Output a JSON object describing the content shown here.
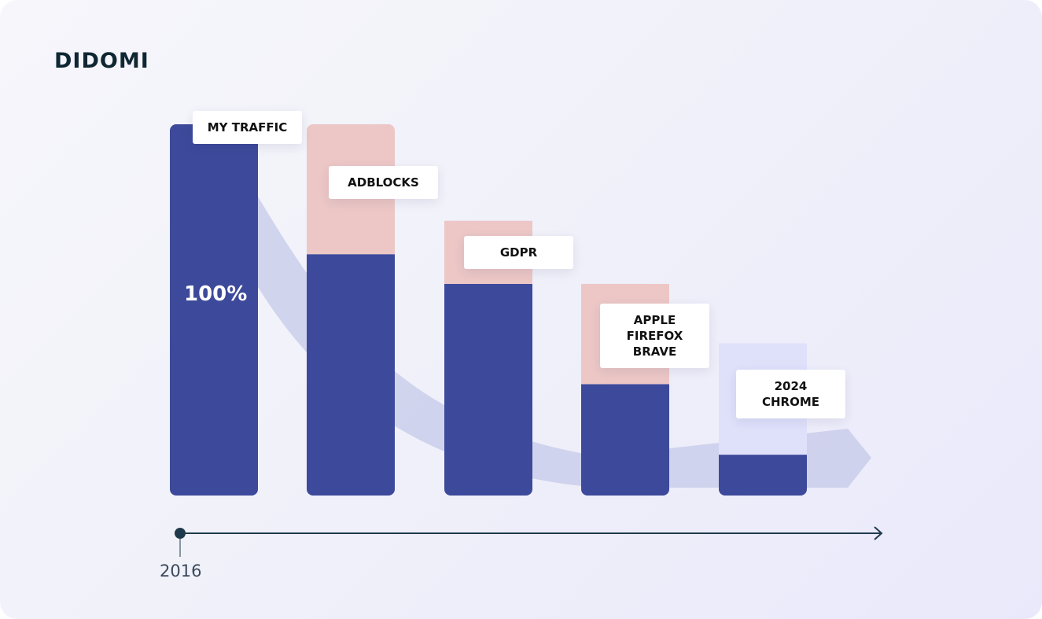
{
  "brand": {
    "logo_text": "DIDOMI"
  },
  "colors": {
    "retained": "#3d4a9b",
    "lost": "#ecc7c6",
    "lost_future": "#dfe1fb",
    "trend_arrow": "#c5c9e8",
    "axis": "#1e3a4a"
  },
  "chart_data": {
    "type": "bar",
    "stacked": true,
    "categories": [
      "MY TRAFFIC",
      "ADBLOCKS",
      "GDPR",
      "APPLE FIREFOX BRAVE",
      "2024 CHROME"
    ],
    "series": [
      {
        "name": "",
        "color": "#3d4a9b",
        "values": [
          100,
          65,
          57,
          30,
          11
        ]
      },
      {
        "name": "",
        "color": "#ecc7c6",
        "values": [
          0,
          35,
          17,
          27,
          0
        ]
      },
      {
        "name": "",
        "color": "#dfe1fb",
        "values": [
          0,
          0,
          0,
          0,
          30
        ]
      }
    ],
    "ylim": [
      0,
      100
    ],
    "value_label": "100%",
    "tags": [
      {
        "lines": [
          "MY TRAFFIC"
        ]
      },
      {
        "lines": [
          "ADBLOCKS"
        ]
      },
      {
        "lines": [
          "GDPR"
        ]
      },
      {
        "lines": [
          "APPLE",
          "FIREFOX",
          "BRAVE"
        ]
      },
      {
        "lines": [
          "2024",
          "CHROME"
        ]
      }
    ],
    "timeline": {
      "start_label": "2016"
    },
    "grid": false
  }
}
